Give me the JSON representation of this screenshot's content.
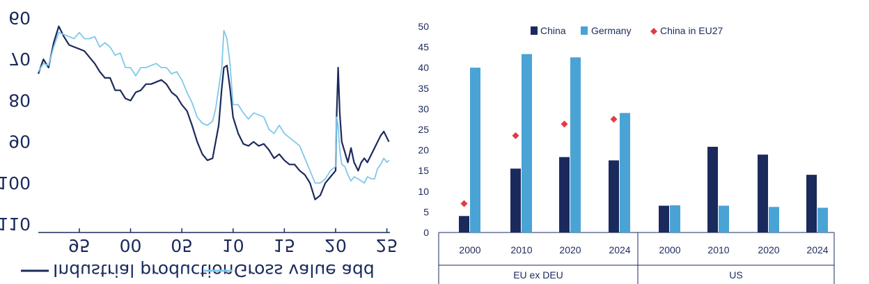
{
  "chart_data": [
    {
      "type": "line",
      "note_display": "mirrored",
      "y_ticks": [
        "60",
        "70",
        "80",
        "90",
        "100",
        "110"
      ],
      "y_tick_values": [
        60,
        70,
        80,
        90,
        100,
        110
      ],
      "x_ticks": [
        "95",
        "00",
        "05",
        "10",
        "15",
        "20",
        "25"
      ],
      "x_tick_years": [
        1995,
        2000,
        2005,
        2010,
        2015,
        2020,
        2025
      ],
      "xlim": [
        1991,
        2025.3
      ],
      "ylim": [
        60,
        112
      ],
      "series": [
        {
          "name": "Industrial production",
          "color": "#1b2a5c",
          "x": [
            1991,
            1991.5,
            1992,
            1992.5,
            1993,
            1993.5,
            1994,
            1994.5,
            1995,
            1995.5,
            1996,
            1996.5,
            1997,
            1997.5,
            1998,
            1998.5,
            1999,
            1999.5,
            2000,
            2000.5,
            2001,
            2001.5,
            2002,
            2002.5,
            2003,
            2003.5,
            2004,
            2004.5,
            2005,
            2005.5,
            2006,
            2006.5,
            2007,
            2007.5,
            2008,
            2008.3,
            2008.6,
            2008.9,
            2009.1,
            2009.4,
            2009.7,
            2010,
            2010.5,
            2011,
            2011.5,
            2012,
            2012.5,
            2013,
            2013.5,
            2014,
            2014.5,
            2015,
            2015.5,
            2016,
            2016.5,
            2017,
            2017.5,
            2018,
            2018.5,
            2019,
            2019.5,
            2020,
            2020.1,
            2020.25,
            2020.4,
            2020.6,
            2020.9,
            2021.2,
            2021.5,
            2021.8,
            2022.2,
            2022.5,
            2022.8,
            2023.1,
            2023.5,
            2023.8,
            2024.1,
            2024.4,
            2024.7,
            2025,
            2025.2
          ],
          "values": [
            73.5,
            70,
            72,
            66,
            62,
            64.5,
            66.5,
            67,
            67.5,
            68,
            69.5,
            71,
            73,
            74.5,
            74.5,
            77.5,
            77.5,
            79.5,
            80,
            78,
            77.5,
            76,
            76,
            75.5,
            75,
            76,
            78,
            79,
            81,
            82.5,
            86,
            90,
            93,
            94.5,
            94,
            90,
            86,
            77,
            72,
            71.5,
            77,
            84,
            88,
            90.5,
            91,
            90,
            91,
            90.5,
            92,
            94,
            93,
            94.5,
            95.5,
            95.5,
            97,
            98,
            100,
            104,
            103,
            100,
            98.5,
            97,
            84,
            72,
            83,
            90,
            92.5,
            95,
            91.5,
            95,
            97,
            95,
            94,
            95,
            93,
            91.5,
            90,
            88.5,
            87.5,
            89,
            90
          ]
        },
        {
          "name": "Gross value add",
          "color": "#7ec8ea",
          "x": [
            1991,
            1991.5,
            1992,
            1992.5,
            1993,
            1993.5,
            1994,
            1994.5,
            1995,
            1995.5,
            1996,
            1996.5,
            1997,
            1997.5,
            1998,
            1998.5,
            1999,
            1999.5,
            2000,
            2000.5,
            2001,
            2001.5,
            2002,
            2002.5,
            2003,
            2003.5,
            2004,
            2004.5,
            2005,
            2005.5,
            2006,
            2006.5,
            2007,
            2007.5,
            2008,
            2008.3,
            2008.6,
            2008.9,
            2009.1,
            2009.4,
            2009.7,
            2010,
            2010.5,
            2011,
            2011.5,
            2012,
            2012.5,
            2013,
            2013.5,
            2014,
            2014.5,
            2015,
            2015.5,
            2016,
            2016.5,
            2017,
            2017.5,
            2018,
            2018.5,
            2019,
            2019.5,
            2020,
            2020.1,
            2020.25,
            2020.4,
            2020.6,
            2020.9,
            2021.2,
            2021.5,
            2021.8,
            2022.2,
            2022.5,
            2022.8,
            2023.1,
            2023.5,
            2023.8,
            2024.1,
            2024.4,
            2024.7,
            2025,
            2025.2
          ],
          "values": [
            73,
            71,
            71.5,
            67,
            63.5,
            64,
            64.5,
            65,
            63.5,
            65,
            65,
            64.5,
            67,
            66,
            67,
            69,
            68.5,
            72,
            72,
            74,
            72,
            72,
            71.5,
            71,
            72,
            72,
            73.5,
            73,
            75,
            78,
            80.5,
            84,
            85.5,
            86,
            85,
            82,
            77,
            72,
            63,
            65,
            71,
            81,
            81,
            83,
            84.5,
            83,
            83.5,
            84,
            87,
            88,
            86,
            88,
            89,
            90,
            91,
            94,
            97,
            100,
            100,
            99,
            97,
            96,
            84,
            86,
            92,
            95.5,
            96,
            98,
            99.5,
            98.5,
            99,
            99.5,
            100,
            98.5,
            99,
            99,
            96.5,
            95.5,
            94,
            95,
            94.5
          ]
        }
      ],
      "legend": [
        "Industrial production",
        "Gross value add"
      ]
    },
    {
      "type": "bar",
      "ylim": [
        0,
        50
      ],
      "y_ticks": [
        "0",
        "5",
        "10",
        "15",
        "20",
        "25",
        "30",
        "35",
        "40",
        "45",
        "50"
      ],
      "groups": [
        {
          "label": "EU ex DEU",
          "categories": [
            "2000",
            "2010",
            "2020",
            "2024"
          ]
        },
        {
          "label": "US",
          "categories": [
            "2000",
            "2010",
            "2020",
            "2024"
          ]
        }
      ],
      "series": [
        {
          "name": "China",
          "color": "#1b2a5c",
          "values": [
            4,
            15.5,
            18.3,
            17.5,
            6.5,
            20.8,
            18.9,
            14
          ]
        },
        {
          "name": "Germany",
          "color": "#4aa3d5",
          "values": [
            40,
            43.3,
            42.5,
            29,
            6.6,
            6.5,
            6.2,
            6
          ]
        },
        {
          "name": "China in EU27",
          "color": "#e63946",
          "marker": "diamond",
          "values": [
            7,
            23.5,
            26.3,
            27.5,
            null,
            null,
            null,
            null
          ]
        }
      ],
      "legend": [
        "China",
        "Germany",
        "China in EU27"
      ],
      "legend_position": "top"
    }
  ]
}
